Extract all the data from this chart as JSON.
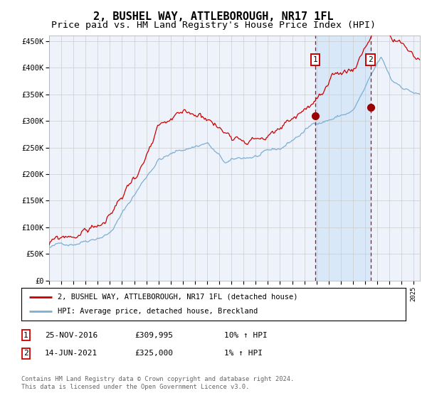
{
  "title": "2, BUSHEL WAY, ATTLEBOROUGH, NR17 1FL",
  "subtitle": "Price paid vs. HM Land Registry's House Price Index (HPI)",
  "title_fontsize": 11,
  "subtitle_fontsize": 9.5,
  "ylim": [
    0,
    460000
  ],
  "xlim_start": 1995.0,
  "xlim_end": 2025.5,
  "background_color": "#ffffff",
  "plot_bg_color": "#eef2fb",
  "grid_color": "#cccccc",
  "red_line_color": "#cc0000",
  "blue_line_color": "#7bafd4",
  "highlight_bg_color": "#d8e8f8",
  "vline_color": "#cc0000",
  "sale1_date": 2016.9,
  "sale1_price": 309995,
  "sale1_label": "1",
  "sale2_date": 2021.45,
  "sale2_price": 325000,
  "sale2_label": "2",
  "legend_line1": "2, BUSHEL WAY, ATTLEBOROUGH, NR17 1FL (detached house)",
  "legend_line2": "HPI: Average price, detached house, Breckland",
  "table_row1": [
    "1",
    "25-NOV-2016",
    "£309,995",
    "10% ↑ HPI"
  ],
  "table_row2": [
    "2",
    "14-JUN-2021",
    "£325,000",
    "1% ↑ HPI"
  ],
  "footer": "Contains HM Land Registry data © Crown copyright and database right 2024.\nThis data is licensed under the Open Government Licence v3.0.",
  "ytick_labels": [
    "£0",
    "£50K",
    "£100K",
    "£150K",
    "£200K",
    "£250K",
    "£300K",
    "£350K",
    "£400K",
    "£450K"
  ],
  "ytick_values": [
    0,
    50000,
    100000,
    150000,
    200000,
    250000,
    300000,
    350000,
    400000,
    450000
  ]
}
